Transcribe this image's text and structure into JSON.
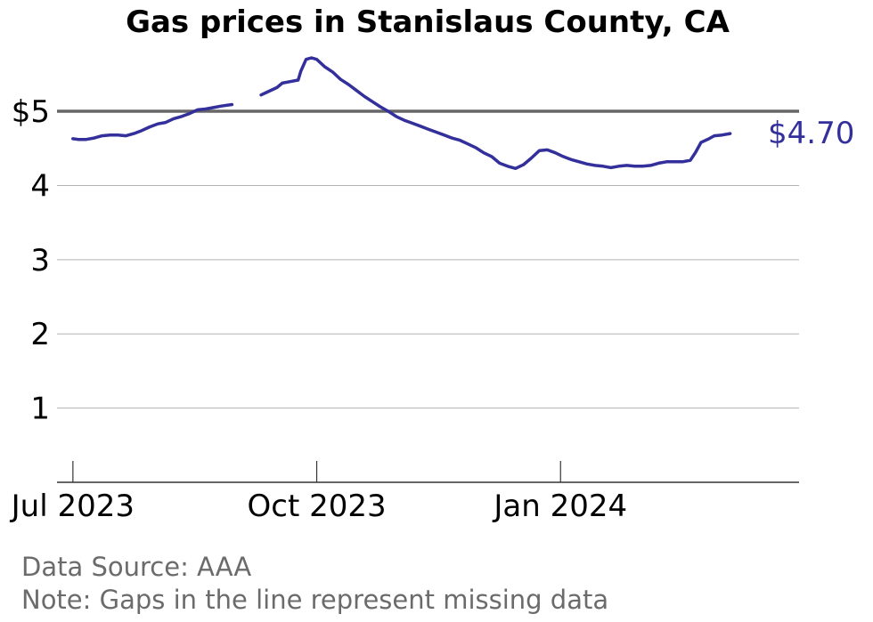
{
  "colors": {
    "line": "#332f9b",
    "reference": "#666666",
    "grid": "#b3b3b3",
    "axis": "#333333",
    "note": "#6b6b6b"
  },
  "chart_data": {
    "type": "line",
    "title": "Gas prices in Stanislaus County, CA",
    "xlabel": "",
    "ylabel": "",
    "ylim": [
      0,
      5.9
    ],
    "xlim": [
      "2023-06-25",
      "2024-03-31"
    ],
    "y_ticks": [
      {
        "value": 1,
        "label": "1"
      },
      {
        "value": 2,
        "label": "2"
      },
      {
        "value": 3,
        "label": "3"
      },
      {
        "value": 4,
        "label": "4"
      },
      {
        "value": 5,
        "label": "$5"
      }
    ],
    "x_ticks": [
      {
        "date": "2023-07-01",
        "label": "Jul 2023"
      },
      {
        "date": "2023-10-01",
        "label": "Oct 2023"
      },
      {
        "date": "2024-01-01",
        "label": "Jan 2024"
      }
    ],
    "reference_line": 5,
    "grid": "horizontal",
    "end_label": "$4.70",
    "note_lines": [
      "Data Source: AAA",
      "Note: Gaps in the line represent missing data"
    ],
    "series": [
      {
        "segments": [
          [
            [
              "2023-07-01",
              4.63
            ],
            [
              "2023-07-03",
              4.62
            ],
            [
              "2023-07-06",
              4.62
            ],
            [
              "2023-07-09",
              4.64
            ],
            [
              "2023-07-12",
              4.67
            ],
            [
              "2023-07-15",
              4.68
            ],
            [
              "2023-07-18",
              4.68
            ],
            [
              "2023-07-21",
              4.67
            ],
            [
              "2023-07-24",
              4.7
            ],
            [
              "2023-07-27",
              4.74
            ],
            [
              "2023-07-30",
              4.79
            ],
            [
              "2023-08-02",
              4.83
            ],
            [
              "2023-08-05",
              4.85
            ],
            [
              "2023-08-08",
              4.9
            ],
            [
              "2023-08-11",
              4.93
            ],
            [
              "2023-08-14",
              4.97
            ],
            [
              "2023-08-17",
              5.02
            ],
            [
              "2023-08-20",
              5.03
            ],
            [
              "2023-08-23",
              5.05
            ],
            [
              "2023-08-26",
              5.07
            ],
            [
              "2023-08-30",
              5.09
            ]
          ],
          [
            [
              "2023-09-10",
              5.22
            ],
            [
              "2023-09-13",
              5.27
            ],
            [
              "2023-09-16",
              5.32
            ],
            [
              "2023-09-18",
              5.38
            ],
            [
              "2023-09-21",
              5.4
            ],
            [
              "2023-09-24",
              5.42
            ],
            [
              "2023-09-25",
              5.54
            ],
            [
              "2023-09-27",
              5.7
            ],
            [
              "2023-09-29",
              5.72
            ],
            [
              "2023-10-01",
              5.7
            ],
            [
              "2023-10-04",
              5.6
            ],
            [
              "2023-10-07",
              5.53
            ],
            [
              "2023-10-10",
              5.43
            ],
            [
              "2023-10-13",
              5.36
            ],
            [
              "2023-10-16",
              5.28
            ],
            [
              "2023-10-19",
              5.2
            ],
            [
              "2023-10-22",
              5.13
            ],
            [
              "2023-10-25",
              5.06
            ],
            [
              "2023-10-28",
              5.0
            ],
            [
              "2023-10-31",
              4.93
            ],
            [
              "2023-11-03",
              4.88
            ],
            [
              "2023-11-06",
              4.84
            ],
            [
              "2023-11-09",
              4.8
            ],
            [
              "2023-11-12",
              4.76
            ],
            [
              "2023-11-15",
              4.72
            ],
            [
              "2023-11-18",
              4.68
            ],
            [
              "2023-11-21",
              4.64
            ],
            [
              "2023-11-24",
              4.61
            ],
            [
              "2023-11-27",
              4.56
            ],
            [
              "2023-11-30",
              4.51
            ],
            [
              "2023-12-03",
              4.44
            ],
            [
              "2023-12-06",
              4.39
            ],
            [
              "2023-12-09",
              4.3
            ],
            [
              "2023-12-12",
              4.26
            ],
            [
              "2023-12-15",
              4.23
            ],
            [
              "2023-12-18",
              4.28
            ],
            [
              "2023-12-21",
              4.37
            ],
            [
              "2023-12-24",
              4.47
            ],
            [
              "2023-12-27",
              4.48
            ],
            [
              "2023-12-30",
              4.44
            ],
            [
              "2024-01-02",
              4.39
            ],
            [
              "2024-01-05",
              4.35
            ],
            [
              "2024-01-08",
              4.32
            ],
            [
              "2024-01-11",
              4.29
            ],
            [
              "2024-01-14",
              4.27
            ],
            [
              "2024-01-17",
              4.26
            ],
            [
              "2024-01-20",
              4.24
            ],
            [
              "2024-01-23",
              4.26
            ],
            [
              "2024-01-26",
              4.27
            ],
            [
              "2024-01-29",
              4.26
            ],
            [
              "2024-02-01",
              4.26
            ],
            [
              "2024-02-04",
              4.27
            ],
            [
              "2024-02-07",
              4.3
            ],
            [
              "2024-02-10",
              4.32
            ],
            [
              "2024-02-13",
              4.32
            ],
            [
              "2024-02-16",
              4.32
            ],
            [
              "2024-02-19",
              4.34
            ],
            [
              "2024-02-21",
              4.45
            ],
            [
              "2024-02-23",
              4.58
            ],
            [
              "2024-02-26",
              4.63
            ],
            [
              "2024-02-28",
              4.67
            ],
            [
              "2024-03-02",
              4.68
            ],
            [
              "2024-03-05",
              4.7
            ]
          ]
        ]
      }
    ]
  }
}
